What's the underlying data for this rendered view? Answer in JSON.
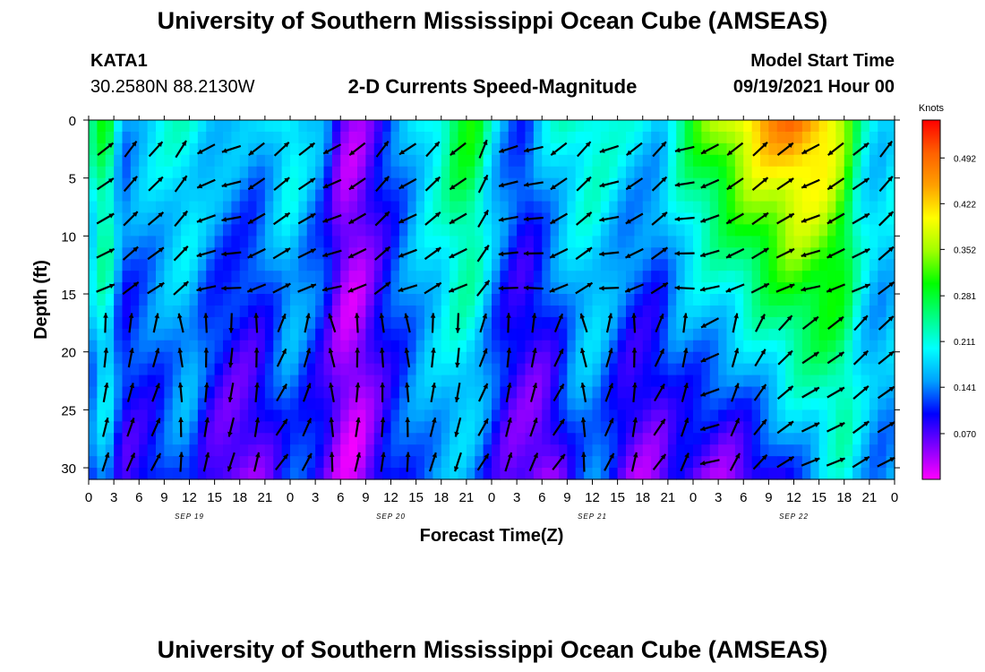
{
  "page": {
    "top_title": "University of Southern Mississippi Ocean Cube (AMSEAS)",
    "bottom_title": "University of Southern Mississippi Ocean Cube (AMSEAS)",
    "station": "KATA1",
    "coords": "30.2580N  88.2130W",
    "plot_title": "2-D Currents Speed-Magnitude",
    "model_start_label": "Model Start Time",
    "model_start_value": "09/19/2021 Hour 00"
  },
  "colors": {
    "scale": [
      "#ff00ff",
      "#8000ff",
      "#0000ff",
      "#00a0ff",
      "#00ffff",
      "#00ff80",
      "#00ff00",
      "#a0ff00",
      "#ffff00",
      "#ffa000",
      "#ff6000",
      "#ff0000"
    ],
    "arrow": "#000000"
  },
  "chart_data": {
    "type": "heatmap",
    "xlabel": "Forecast Time(Z)",
    "ylabel": "Depth (ft)",
    "colorbar_label": "Knots",
    "colorbar_ticks": [
      "0.492",
      "0.422",
      "0.352",
      "0.281",
      "0.211",
      "0.141",
      "0.070"
    ],
    "colorbar_range": [
      0.0,
      0.55
    ],
    "xlim": [
      0,
      96
    ],
    "ylim": [
      0,
      31
    ],
    "y_ticks": [
      0,
      5,
      10,
      15,
      20,
      25,
      30
    ],
    "y_reversed": true,
    "x_ticks": [
      "0",
      "3",
      "6",
      "9",
      "12",
      "15",
      "18",
      "21",
      "0",
      "3",
      "6",
      "9",
      "12",
      "15",
      "18",
      "21",
      "0",
      "3",
      "6",
      "9",
      "12",
      "15",
      "18",
      "21",
      "0",
      "3",
      "6",
      "9",
      "12",
      "15",
      "18",
      "21",
      "0"
    ],
    "day_labels": [
      {
        "label": "SEP 19",
        "hour": 12
      },
      {
        "label": "SEP 20",
        "hour": 36
      },
      {
        "label": "SEP 21",
        "hour": 60
      },
      {
        "label": "SEP 22",
        "hour": 84
      }
    ],
    "speed_profile": {
      "hours": [
        0,
        2,
        4,
        6,
        8,
        10,
        12,
        14,
        16,
        18,
        20,
        22,
        24,
        26,
        28,
        30,
        32,
        34,
        36,
        38,
        40,
        42,
        44,
        46,
        48,
        50,
        52,
        54,
        56,
        58,
        60,
        62,
        64,
        66,
        68,
        70,
        72,
        74,
        76,
        78,
        80,
        82,
        84,
        86,
        88,
        90,
        92,
        94,
        96
      ],
      "surface": [
        0.22,
        0.3,
        0.15,
        0.18,
        0.2,
        0.21,
        0.21,
        0.19,
        0.18,
        0.17,
        0.16,
        0.19,
        0.22,
        0.18,
        0.15,
        0.05,
        0.04,
        0.08,
        0.12,
        0.16,
        0.2,
        0.23,
        0.29,
        0.3,
        0.2,
        0.15,
        0.12,
        0.18,
        0.21,
        0.22,
        0.23,
        0.22,
        0.2,
        0.19,
        0.18,
        0.24,
        0.3,
        0.34,
        0.38,
        0.42,
        0.45,
        0.47,
        0.49,
        0.47,
        0.43,
        0.35,
        0.22,
        0.18,
        0.2
      ],
      "bottom": [
        0.1,
        0.17,
        0.08,
        0.08,
        0.09,
        0.12,
        0.14,
        0.08,
        0.05,
        0.04,
        0.05,
        0.08,
        0.12,
        0.1,
        0.07,
        0.03,
        0.02,
        0.06,
        0.1,
        0.12,
        0.14,
        0.15,
        0.16,
        0.14,
        0.1,
        0.06,
        0.05,
        0.03,
        0.06,
        0.12,
        0.14,
        0.1,
        0.05,
        0.04,
        0.05,
        0.08,
        0.06,
        0.05,
        0.04,
        0.05,
        0.07,
        0.09,
        0.12,
        0.14,
        0.18,
        0.21,
        0.17,
        0.14,
        0.15
      ]
    },
    "vector_rows_depth_ft": [
      2.5,
      5.5,
      8.5,
      11.5,
      14.5,
      17.5,
      20.5,
      23.5,
      26.5,
      29.5
    ],
    "vector_columns_hours": [
      2,
      5,
      8,
      11,
      14,
      17,
      20,
      23,
      26,
      29,
      32,
      35,
      38,
      41,
      44,
      47,
      50,
      53,
      56,
      59,
      62,
      65,
      68,
      71,
      74,
      77,
      80,
      83,
      86,
      89,
      92,
      95
    ],
    "vector_directions_deg": {
      "shallow": [
        -30,
        -45,
        -40,
        -50,
        160,
        170,
        150,
        -35,
        -30,
        160,
        150,
        -45,
        155,
        -40,
        150,
        -60,
        170,
        175,
        150,
        -40,
        170,
        150,
        -40,
        175,
        160,
        150,
        -35,
        -30,
        160,
        150,
        -30,
        -45
      ],
      "deep": [
        -80,
        -75,
        -70,
        -95,
        -85,
        100,
        -85,
        -60,
        -70,
        -100,
        -85,
        -90,
        -95,
        -80,
        100,
        -65,
        -80,
        -75,
        -60,
        -100,
        -70,
        -85,
        -60,
        -75,
        160,
        -70,
        -55,
        -40,
        -30,
        -30,
        -40,
        -35
      ]
    },
    "legend_position": "right"
  }
}
